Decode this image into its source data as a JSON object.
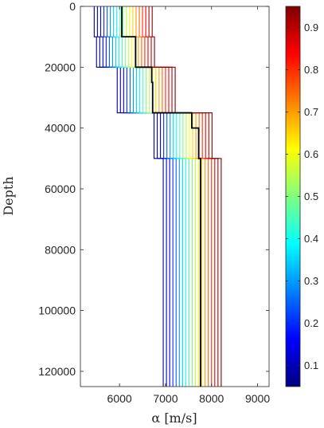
{
  "chart_data": {
    "type": "line",
    "title": "",
    "xlabel": "α [m/s]",
    "ylabel": "Depth",
    "xlim": [
      5150,
      9250
    ],
    "ylim": [
      125000,
      0
    ],
    "y_reversed": true,
    "grid": false,
    "legend": "none",
    "xticks": [
      "6000",
      "7000",
      "8000",
      "9000"
    ],
    "yticks": [
      "0",
      "20000",
      "40000",
      "60000",
      "80000",
      "100000",
      "120000"
    ],
    "xtick_values": [
      6000,
      7000,
      8000,
      9000
    ],
    "ytick_values": [
      0,
      20000,
      40000,
      60000,
      80000,
      100000,
      120000
    ],
    "colorbar": {
      "colormap": "jet",
      "range": [
        0.05,
        0.95
      ],
      "ticks": [
        "0.1",
        "0.2",
        "0.3",
        "0.4",
        "0.5",
        "0.6",
        "0.7",
        "0.8",
        "0.9"
      ],
      "tick_values": [
        0.1,
        0.2,
        0.3,
        0.4,
        0.5,
        0.6,
        0.7,
        0.8,
        0.9
      ]
    },
    "layer_boundaries_depth": [
      0,
      10000,
      20000,
      25000,
      35000,
      40000,
      50000,
      125000
    ],
    "quantiles": [
      0.05,
      0.1,
      0.15,
      0.2,
      0.25,
      0.3,
      0.35,
      0.4,
      0.45,
      0.5,
      0.55,
      0.6,
      0.65,
      0.7,
      0.75,
      0.8,
      0.85,
      0.9,
      0.95
    ],
    "series_velocity_min": [
      5450,
      5500,
      5950,
      5950,
      6750,
      6750,
      6950
    ],
    "series_velocity_step": [
      70,
      70,
      70,
      70,
      70,
      70,
      70
    ],
    "median_series": {
      "color": "#000000",
      "velocity": [
        6050,
        6350,
        6700,
        6720,
        7570,
        7720,
        7760
      ]
    }
  }
}
